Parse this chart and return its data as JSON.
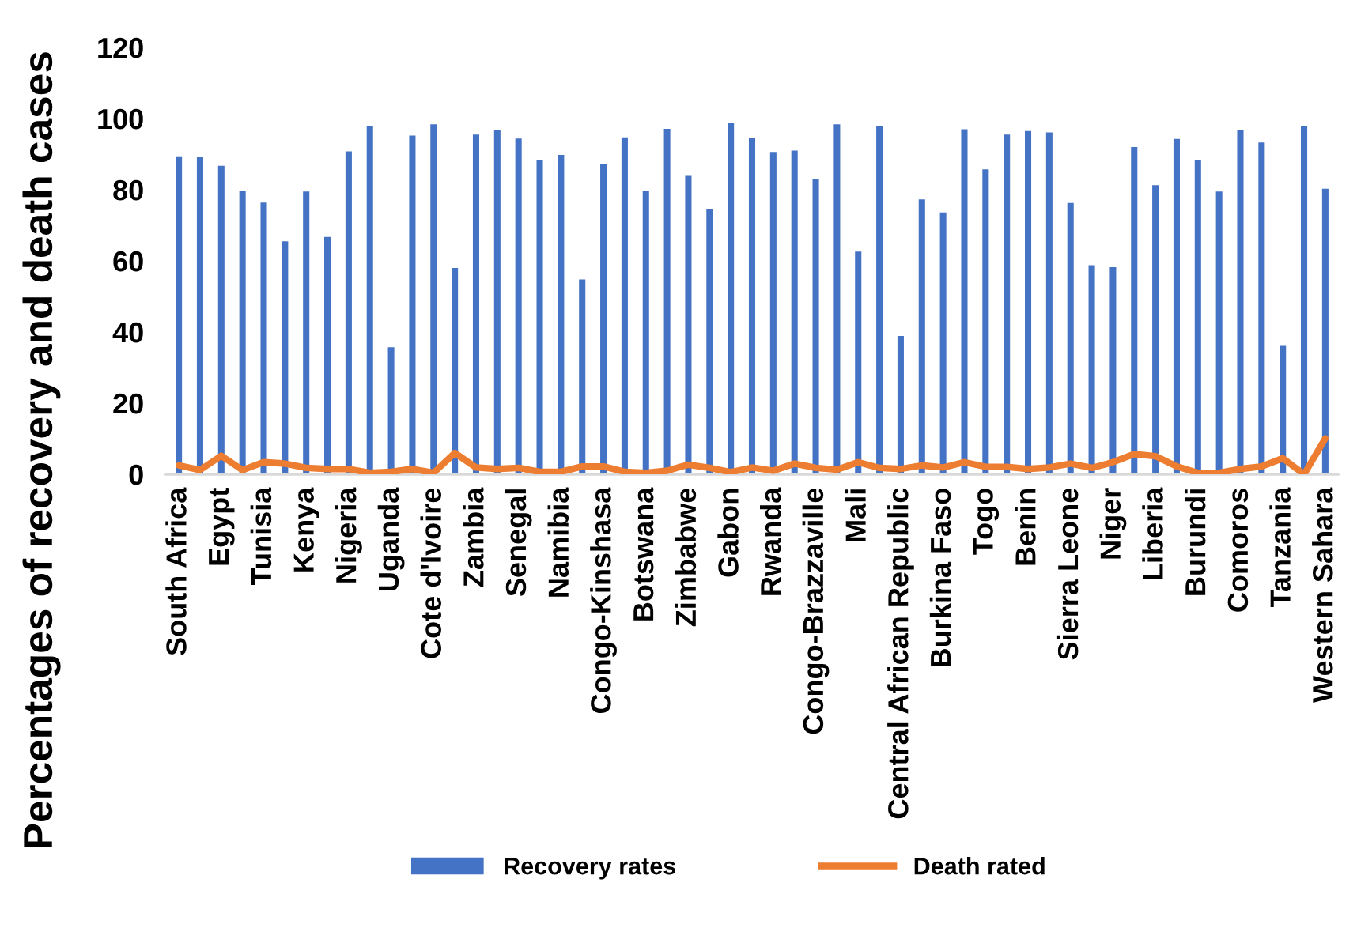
{
  "chart_data": {
    "type": "bar",
    "ylabel": "Percentages of recovery and death cases",
    "categories": [
      "South Africa",
      null,
      "Egypt",
      null,
      "Tunisia",
      null,
      "Kenya",
      null,
      "Nigeria",
      null,
      "Uganda",
      null,
      "Cote d'Ivoire",
      null,
      "Zambia",
      null,
      "Senegal",
      null,
      "Namibia",
      null,
      "Congo-Kinshasa",
      null,
      "Botswana",
      null,
      "Zimbabwe",
      null,
      "Gabon",
      null,
      "Rwanda",
      null,
      "Congo-Brazzaville",
      null,
      "Mali",
      null,
      "Central African Republic",
      null,
      "Burkina Faso",
      null,
      "Togo",
      null,
      "Benin",
      null,
      "Sierra Leone",
      null,
      "Niger",
      null,
      "Liberia",
      null,
      "Burundi",
      null,
      "Comoros",
      null,
      "Tanzania",
      null,
      "Western Sahara"
    ],
    "series": [
      {
        "name": "Recovery rates",
        "color": "#4472c4",
        "values": [
          89.4,
          89.1,
          86.7,
          79.7,
          76.4,
          65.5,
          79.5,
          66.7,
          90.8,
          98.0,
          35.7,
          95.2,
          98.4,
          58.0,
          95.5,
          96.8,
          94.4,
          88.2,
          89.8,
          54.8,
          87.3,
          94.7,
          79.8,
          97.1,
          83.9,
          74.6,
          98.9,
          94.6,
          90.6,
          91.0,
          83.0,
          98.4,
          62.6,
          98.0,
          38.9,
          77.3,
          73.6,
          97.0,
          85.7,
          95.5,
          96.5,
          96.1,
          76.3,
          58.8,
          58.2,
          92.0,
          81.3,
          94.3,
          88.3,
          79.5,
          96.8,
          93.3,
          36.1,
          97.9,
          80.3
        ]
      },
      {
        "name": "Death rated",
        "type": "line",
        "color": "#ed7d31",
        "values": [
          2.5,
          1.2,
          5.2,
          1.2,
          3.4,
          3.0,
          1.8,
          1.5,
          1.5,
          0.4,
          0.7,
          1.5,
          0.4,
          6.0,
          1.9,
          1.5,
          1.8,
          0.7,
          0.7,
          2.2,
          2.2,
          0.7,
          0.4,
          1.0,
          2.7,
          1.8,
          0.6,
          1.9,
          1.0,
          3.0,
          1.8,
          1.3,
          3.4,
          1.8,
          1.5,
          2.5,
          1.9,
          3.4,
          2.1,
          2.1,
          1.5,
          1.9,
          3.0,
          1.8,
          3.4,
          5.7,
          5.1,
          2.2,
          0.4,
          0.4,
          1.5,
          2.2,
          4.5,
          0.0,
          10.1
        ]
      }
    ],
    "ylim": [
      0,
      120
    ],
    "yticks": [
      0,
      20,
      40,
      60,
      80,
      100,
      120
    ],
    "legend": "bottom"
  }
}
